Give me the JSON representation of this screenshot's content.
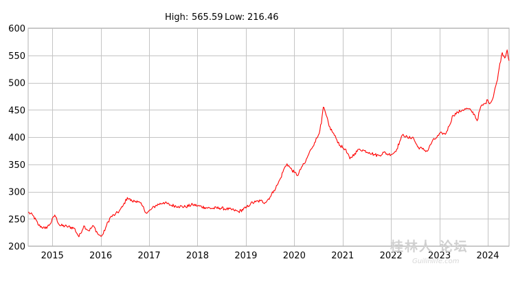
{
  "header": {
    "high_label": "High:",
    "high_value": "565.59",
    "low_label": "Low:",
    "low_value": "216.46"
  },
  "watermark": {
    "text": "桂林人 论坛",
    "subtext": "Guilinlife.com"
  },
  "colors": {
    "series": "#ff0000",
    "grid": "#c4c4c4",
    "background": "#ffffff"
  },
  "chart_data": {
    "type": "line",
    "title": "",
    "xlabel": "",
    "ylabel": "",
    "ylim": [
      200,
      600
    ],
    "xlim": [
      2014.5,
      2024.44
    ],
    "grid": true,
    "legend": "none",
    "yticks": [
      200,
      250,
      300,
      350,
      400,
      450,
      500,
      550,
      600
    ],
    "xticks": [
      {
        "value": 2015,
        "label": "2015"
      },
      {
        "value": 2016,
        "label": "2016"
      },
      {
        "value": 2017,
        "label": "2017"
      },
      {
        "value": 2018,
        "label": "2018"
      },
      {
        "value": 2019,
        "label": "2019"
      },
      {
        "value": 2020,
        "label": "2020"
      },
      {
        "value": 2021,
        "label": "2021"
      },
      {
        "value": 2022,
        "label": "2022"
      },
      {
        "value": 2023,
        "label": "2023"
      },
      {
        "value": 2024,
        "label": "2024"
      }
    ],
    "series": [
      {
        "color": "#ff0000",
        "x": [
          2014.5,
          2014.6,
          2014.72,
          2014.85,
          2014.95,
          2015.05,
          2015.15,
          2015.3,
          2015.45,
          2015.55,
          2015.65,
          2015.75,
          2015.85,
          2015.95,
          2016.0,
          2016.05,
          2016.12,
          2016.2,
          2016.3,
          2016.38,
          2016.45,
          2016.55,
          2016.65,
          2016.75,
          2016.85,
          2016.95,
          2017.05,
          2017.15,
          2017.3,
          2017.45,
          2017.6,
          2017.75,
          2017.9,
          2018.0,
          2018.15,
          2018.3,
          2018.45,
          2018.6,
          2018.75,
          2018.85,
          2019.0,
          2019.1,
          2019.2,
          2019.3,
          2019.4,
          2019.5,
          2019.58,
          2019.65,
          2019.72,
          2019.78,
          2019.85,
          2019.92,
          2020.0,
          2020.08,
          2020.15,
          2020.22,
          2020.28,
          2020.35,
          2020.42,
          2020.5,
          2020.56,
          2020.6,
          2020.66,
          2020.72,
          2020.8,
          2020.88,
          2020.95,
          2021.05,
          2021.15,
          2021.25,
          2021.35,
          2021.45,
          2021.55,
          2021.65,
          2021.75,
          2021.85,
          2021.95,
          2022.05,
          2022.12,
          2022.18,
          2022.25,
          2022.35,
          2022.45,
          2022.55,
          2022.65,
          2022.75,
          2022.85,
          2022.95,
          2023.05,
          2023.12,
          2023.2,
          2023.28,
          2023.38,
          2023.48,
          2023.58,
          2023.66,
          2023.72,
          2023.78,
          2023.85,
          2023.95,
          2024.0,
          2024.05,
          2024.1,
          2024.15,
          2024.2,
          2024.25,
          2024.3,
          2024.35,
          2024.4,
          2024.44
        ],
        "y": [
          262,
          256,
          238,
          232,
          240,
          257,
          238,
          236,
          233,
          217,
          237,
          228,
          237,
          221,
          218,
          222,
          238,
          253,
          258,
          264,
          272,
          289,
          282,
          283,
          275,
          260,
          268,
          275,
          280,
          275,
          273,
          272,
          276,
          274,
          271,
          269,
          270,
          268,
          266,
          263,
          270,
          278,
          281,
          283,
          280,
          290,
          302,
          312,
          325,
          340,
          351,
          343,
          335,
          330,
          345,
          352,
          365,
          378,
          390,
          404,
          425,
          455,
          440,
          420,
          408,
          395,
          384,
          378,
          360,
          370,
          378,
          375,
          372,
          368,
          366,
          372,
          368,
          370,
          378,
          392,
          405,
          398,
          400,
          382,
          378,
          374,
          392,
          400,
          408,
          405,
          420,
          440,
          445,
          450,
          452,
          448,
          442,
          430,
          455,
          462,
          468,
          462,
          470,
          490,
          505,
          535,
          555,
          545,
          560,
          540
        ]
      }
    ]
  }
}
